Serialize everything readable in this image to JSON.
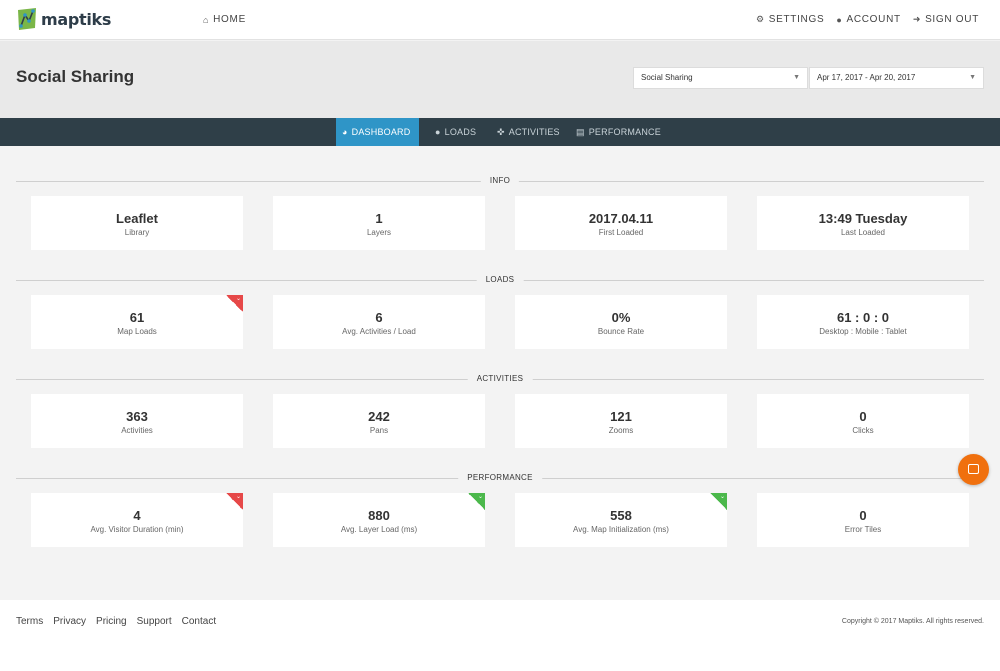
{
  "brand": {
    "name": "maptiks"
  },
  "nav": {
    "home": "HOME",
    "settings": "SETTINGS",
    "account": "ACCOUNT",
    "sign_out": "SIGN OUT"
  },
  "header": {
    "title": "Social Sharing",
    "site_select": "Social Sharing",
    "date_range": "Apr 17, 2017 - Apr 20, 2017"
  },
  "tabs": [
    "DASHBOARD",
    "LOADS",
    "ACTIVITIES",
    "PERFORMANCE"
  ],
  "sections": {
    "info": {
      "title": "INFO",
      "cards": [
        {
          "value": "Leaflet",
          "label": "Library"
        },
        {
          "value": "1",
          "label": "Layers"
        },
        {
          "value": "2017.04.11",
          "label": "First Loaded"
        },
        {
          "value": "13:49 Tuesday",
          "label": "Last Loaded"
        }
      ]
    },
    "loads": {
      "title": "LOADS",
      "cards": [
        {
          "value": "61",
          "label": "Map Loads",
          "trend": "down"
        },
        {
          "value": "6",
          "label": "Avg. Activities / Load"
        },
        {
          "value": "0%",
          "label": "Bounce Rate"
        },
        {
          "value": "61 : 0 : 0",
          "label": "Desktop : Mobile : Tablet"
        }
      ]
    },
    "activities": {
      "title": "ACTIVITIES",
      "cards": [
        {
          "value": "363",
          "label": "Activities"
        },
        {
          "value": "242",
          "label": "Pans"
        },
        {
          "value": "121",
          "label": "Zooms"
        },
        {
          "value": "0",
          "label": "Clicks"
        }
      ]
    },
    "performance": {
      "title": "PERFORMANCE",
      "cards": [
        {
          "value": "4",
          "label": "Avg. Visitor Duration (min)",
          "trend": "down"
        },
        {
          "value": "880",
          "label": "Avg. Layer Load (ms)",
          "trend": "up"
        },
        {
          "value": "558",
          "label": "Avg. Map Initialization (ms)",
          "trend": "up"
        },
        {
          "value": "0",
          "label": "Error Tiles"
        }
      ]
    }
  },
  "footer": {
    "links": [
      "Terms",
      "Privacy",
      "Pricing",
      "Support",
      "Contact"
    ],
    "copyright": "Copyright © 2017 Maptiks. All rights reserved."
  },
  "colors": {
    "tabbar": "#2f3f48",
    "active_tab": "#2f95c7",
    "trend_down": "#e64848",
    "trend_up": "#4bb84b",
    "chat": "#f0700e"
  },
  "icons": {
    "home": "home-icon",
    "settings": "gear-icon",
    "account": "user-icon",
    "sign_out": "sign-out-icon",
    "dashboard": "dashboard-icon",
    "loads": "map-marker-icon",
    "activities": "crosshairs-icon",
    "performance": "bar-chart-icon",
    "chat": "chat-icon"
  }
}
